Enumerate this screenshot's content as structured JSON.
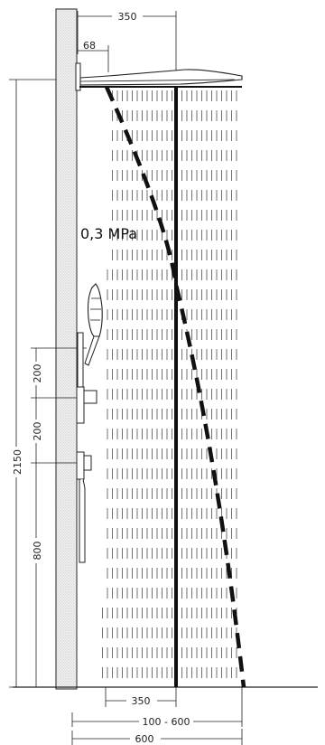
{
  "dimensions": {
    "top_projection": "350",
    "arm_offset": "68",
    "total_height": "2150",
    "upper_spacing": "200",
    "lower_spacing": "200",
    "mixer_height": "800",
    "bottom_projection": "350",
    "spray_range": "100 - 600",
    "max_reach": "600"
  },
  "pressure_label": "0,3 MPa",
  "colors": {
    "line": "#222222",
    "wall_fill": "#e8e8e8",
    "spray": "#333333"
  }
}
